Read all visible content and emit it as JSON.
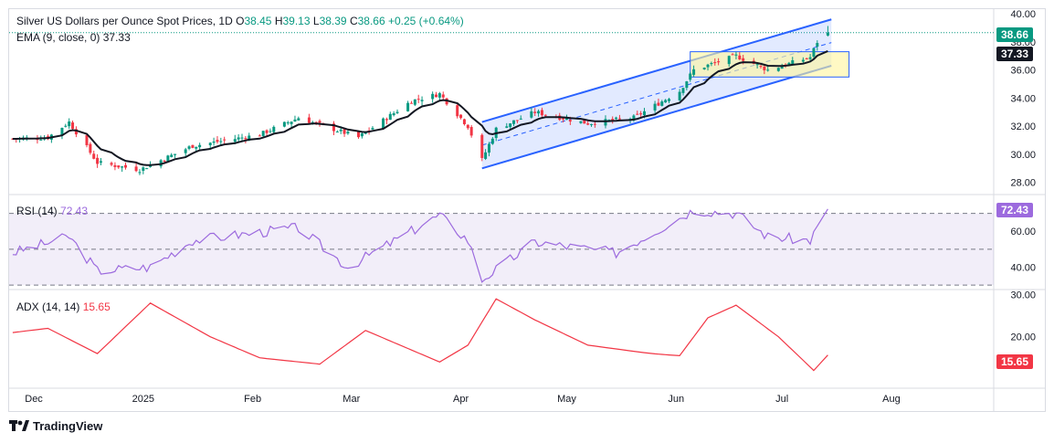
{
  "colors": {
    "up": "#089981",
    "down": "#f23645",
    "ema": "#131722",
    "channel": "#2962ff",
    "channel_fill": "#2962ff22",
    "rect_fill": "#fff59d99",
    "rsi": "#9c6ade",
    "adx": "#f23645",
    "grid": "#f0f3fa"
  },
  "header": {
    "title": "Silver US Dollars per Ounce Spot Prices, 1D",
    "o_label": "O",
    "o": "38.45",
    "h_label": "H",
    "h": "39.13",
    "l_label": "L",
    "l": "38.39",
    "c_label": "C",
    "c": "38.66",
    "chg": "+0.25 (+0.64%)",
    "ema_label": "EMA (9, close, 0)",
    "ema_value": "37.33"
  },
  "rsi_header": {
    "label": "RSI (14)",
    "value": "72.43"
  },
  "adx_header": {
    "label": "ADX (14, 14)",
    "value": "15.65"
  },
  "price_tags": {
    "last": "38.66",
    "ema": "37.33"
  },
  "rsi_tag": "72.43",
  "adx_tag": "15.65",
  "price_axis": [
    "40.00",
    "38.00",
    "36.00",
    "34.00",
    "32.00",
    "30.00",
    "28.00"
  ],
  "rsi_axis": [
    "60.00",
    "40.00"
  ],
  "adx_axis": [
    "30.00",
    "20.00"
  ],
  "x_labels": [
    "Dec",
    "2025",
    "Feb",
    "Mar",
    "Apr",
    "May",
    "Jun",
    "Jul",
    "Aug"
  ],
  "branding": "TradingView",
  "chart_data": [
    {
      "type": "candlestick",
      "title": "Silver US Dollars per Ounce Spot Prices, 1D",
      "ylim": [
        27.2,
        40.2
      ],
      "x_range": [
        "2024-11-25",
        "2025-08-31"
      ],
      "key_points": [
        [
          "2024-11-25",
          31.1
        ],
        [
          "2024-12-05",
          31.2
        ],
        [
          "2024-12-11",
          32.3
        ],
        [
          "2024-12-19",
          29.4
        ],
        [
          "2024-12-31",
          28.9
        ],
        [
          "2025-01-15",
          30.6
        ],
        [
          "2025-02-03",
          31.4
        ],
        [
          "2025-02-14",
          32.6
        ],
        [
          "2025-03-03",
          31.2
        ],
        [
          "2025-03-18",
          33.8
        ],
        [
          "2025-03-26",
          34.3
        ],
        [
          "2025-04-03",
          32.0
        ],
        [
          "2025-04-07",
          29.6
        ],
        [
          "2025-04-11",
          31.8
        ],
        [
          "2025-04-22",
          33.0
        ],
        [
          "2025-05-07",
          32.2
        ],
        [
          "2025-05-20",
          32.6
        ],
        [
          "2025-06-02",
          34.5
        ],
        [
          "2025-06-06",
          36.0
        ],
        [
          "2025-06-18",
          37.0
        ],
        [
          "2025-06-27",
          36.0
        ],
        [
          "2025-07-09",
          36.9
        ],
        [
          "2025-07-11",
          38.0
        ],
        [
          "2025-07-14",
          38.66
        ]
      ],
      "last": {
        "open": 38.45,
        "high": 39.13,
        "low": 38.39,
        "close": 38.66
      },
      "ema9_last": 37.33,
      "annotations": [
        "ascending channel Apr–Jul",
        "consolidation box Jun–Jul"
      ]
    },
    {
      "type": "line",
      "title": "RSI (14)",
      "ylim": [
        28,
        80
      ],
      "levels": [
        70,
        50,
        30
      ],
      "key_points": [
        [
          "2024-11-25",
          48
        ],
        [
          "2024-12-11",
          57
        ],
        [
          "2024-12-19",
          38
        ],
        [
          "2025-01-03",
          40
        ],
        [
          "2025-01-15",
          55
        ],
        [
          "2025-02-14",
          62
        ],
        [
          "2025-02-28",
          40
        ],
        [
          "2025-03-26",
          69
        ],
        [
          "2025-04-03",
          55
        ],
        [
          "2025-04-07",
          33
        ],
        [
          "2025-04-22",
          54
        ],
        [
          "2025-05-15",
          48
        ],
        [
          "2025-06-06",
          72
        ],
        [
          "2025-06-18",
          70
        ],
        [
          "2025-06-27",
          57
        ],
        [
          "2025-07-09",
          55
        ],
        [
          "2025-07-14",
          72.43
        ]
      ],
      "last": 72.43
    },
    {
      "type": "line",
      "title": "ADX (14, 14)",
      "ylim": [
        8,
        31
      ],
      "key_points": [
        [
          "2024-11-25",
          21
        ],
        [
          "2024-12-05",
          22
        ],
        [
          "2024-12-19",
          16
        ],
        [
          "2025-01-03",
          28
        ],
        [
          "2025-01-20",
          20
        ],
        [
          "2025-02-03",
          15
        ],
        [
          "2025-02-20",
          13.5
        ],
        [
          "2025-03-05",
          21.5
        ],
        [
          "2025-03-26",
          14
        ],
        [
          "2025-04-03",
          18
        ],
        [
          "2025-04-11",
          29
        ],
        [
          "2025-04-22",
          24
        ],
        [
          "2025-05-07",
          18
        ],
        [
          "2025-05-25",
          16
        ],
        [
          "2025-06-02",
          15.5
        ],
        [
          "2025-06-10",
          24.5
        ],
        [
          "2025-06-18",
          27.5
        ],
        [
          "2025-06-30",
          20
        ],
        [
          "2025-07-10",
          12
        ],
        [
          "2025-07-14",
          15.65
        ]
      ],
      "last": 15.65
    }
  ]
}
